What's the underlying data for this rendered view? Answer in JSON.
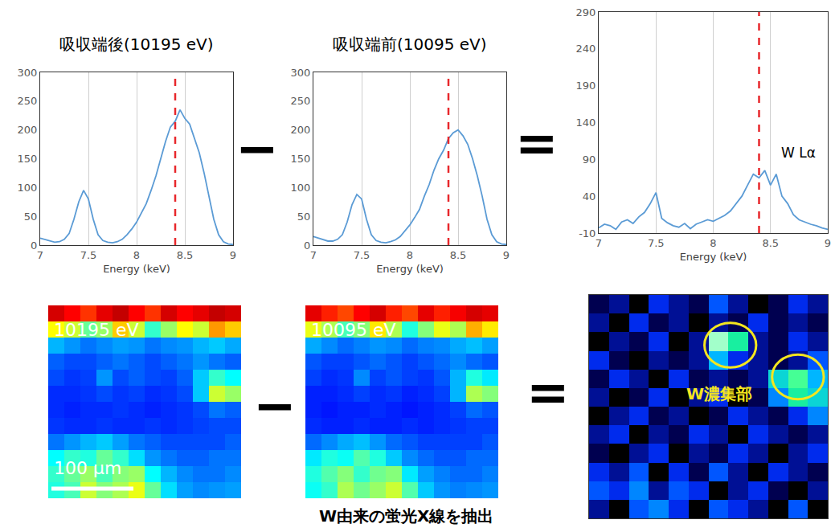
{
  "chart_data": [
    {
      "type": "line",
      "title": "吸収端後(10195 eV)",
      "x_label": "Energy (keV)",
      "color": "#5b9bd5",
      "x": [
        7,
        7.05,
        7.1,
        7.15,
        7.2,
        7.25,
        7.3,
        7.35,
        7.4,
        7.45,
        7.5,
        7.55,
        7.6,
        7.65,
        7.7,
        7.75,
        7.8,
        7.85,
        7.9,
        7.95,
        8,
        8.05,
        8.1,
        8.15,
        8.2,
        8.25,
        8.3,
        8.35,
        8.4,
        8.45,
        8.5,
        8.55,
        8.6,
        8.65,
        8.7,
        8.75,
        8.8,
        8.85,
        8.9,
        8.95,
        9
      ],
      "values": [
        12,
        10,
        8,
        5,
        6,
        10,
        20,
        45,
        75,
        95,
        80,
        45,
        18,
        8,
        5,
        4,
        6,
        10,
        18,
        28,
        40,
        55,
        72,
        95,
        120,
        150,
        180,
        205,
        215,
        235,
        220,
        210,
        185,
        160,
        125,
        85,
        45,
        18,
        6,
        2,
        1
      ],
      "xlim": [
        7,
        9
      ],
      "xticks": [
        7,
        7.5,
        8,
        8.5,
        9
      ],
      "ylim": [
        0,
        300
      ],
      "yticks": [
        0,
        50,
        100,
        150,
        200,
        250,
        300
      ],
      "grid": "x",
      "reference_line": {
        "x": 8.4,
        "color": "#e8282c",
        "line_style": "dash"
      }
    },
    {
      "type": "line",
      "title": "吸収端前(10095 eV)",
      "x_label": "Energy (keV)",
      "color": "#5b9bd5",
      "x": [
        7,
        7.05,
        7.1,
        7.15,
        7.2,
        7.25,
        7.3,
        7.35,
        7.4,
        7.45,
        7.5,
        7.55,
        7.6,
        7.65,
        7.7,
        7.75,
        7.8,
        7.85,
        7.9,
        7.95,
        8,
        8.05,
        8.1,
        8.15,
        8.2,
        8.25,
        8.3,
        8.35,
        8.4,
        8.45,
        8.5,
        8.55,
        8.6,
        8.65,
        8.7,
        8.75,
        8.8,
        8.85,
        8.9,
        8.95,
        9
      ],
      "values": [
        15,
        12,
        10,
        7,
        7,
        10,
        18,
        40,
        70,
        88,
        80,
        45,
        18,
        8,
        5,
        4,
        6,
        9,
        15,
        25,
        35,
        48,
        62,
        85,
        105,
        130,
        150,
        165,
        185,
        195,
        200,
        190,
        175,
        150,
        120,
        85,
        45,
        18,
        6,
        2,
        1
      ],
      "xlim": [
        7,
        9
      ],
      "xticks": [
        7,
        7.5,
        8,
        8.5,
        9
      ],
      "ylim": [
        0,
        300
      ],
      "yticks": [
        0,
        50,
        100,
        150,
        200,
        250,
        300
      ],
      "grid": "x",
      "reference_line": {
        "x": 8.4,
        "color": "#e8282c",
        "line_style": "dash"
      }
    },
    {
      "type": "line",
      "x_label": "Energy (keV)",
      "color": "#5b9bd5",
      "x": [
        7,
        7.05,
        7.1,
        7.15,
        7.2,
        7.25,
        7.3,
        7.35,
        7.4,
        7.45,
        7.5,
        7.55,
        7.6,
        7.65,
        7.7,
        7.75,
        7.8,
        7.85,
        7.9,
        7.95,
        8,
        8.05,
        8.1,
        8.15,
        8.2,
        8.25,
        8.3,
        8.35,
        8.4,
        8.45,
        8.5,
        8.55,
        8.6,
        8.65,
        8.7,
        8.75,
        8.8,
        8.85,
        8.9,
        8.95,
        9
      ],
      "values": [
        -3,
        2,
        0,
        -5,
        5,
        8,
        3,
        12,
        18,
        30,
        45,
        10,
        4,
        0,
        -2,
        3,
        -4,
        2,
        5,
        8,
        6,
        10,
        14,
        20,
        30,
        40,
        55,
        70,
        65,
        75,
        55,
        70,
        40,
        30,
        15,
        8,
        5,
        2,
        0,
        -3,
        -5
      ],
      "xlim": [
        7,
        9
      ],
      "xticks": [
        7,
        7.5,
        8,
        8.5,
        9
      ],
      "ylim": [
        -10,
        290
      ],
      "yticks": [
        -10,
        40,
        90,
        140,
        190,
        240,
        290
      ],
      "grid": "x",
      "reference_line": {
        "x": 8.4,
        "color": "#e8282c",
        "line_style": "dash"
      },
      "annotations": [
        {
          "text": "W Lα",
          "x": 8.58,
          "y": 99
        }
      ]
    },
    {
      "type": "heatmap",
      "label": "10195 eV",
      "tick_labels": false,
      "zlim": [
        0,
        100
      ],
      "scale_bar": {
        "label": "100 µm",
        "length": 5.1
      },
      "cells": [
        [
          90,
          85,
          80,
          88,
          92,
          85,
          80,
          90,
          85,
          88,
          92,
          90
        ],
        [
          60,
          55,
          45,
          50,
          65,
          55,
          40,
          50,
          60,
          55,
          70,
          65
        ],
        [
          28,
          25,
          22,
          24,
          26,
          25,
          22,
          24,
          25,
          28,
          30,
          27
        ],
        [
          20,
          18,
          18,
          20,
          22,
          20,
          18,
          20,
          22,
          25,
          22,
          20
        ],
        [
          18,
          16,
          17,
          25,
          18,
          20,
          18,
          17,
          20,
          30,
          40,
          35
        ],
        [
          15,
          15,
          16,
          18,
          16,
          17,
          15,
          16,
          18,
          30,
          55,
          50
        ],
        [
          15,
          14,
          15,
          15,
          16,
          15,
          14,
          15,
          16,
          18,
          22,
          20
        ],
        [
          16,
          15,
          15,
          16,
          15,
          15,
          16,
          15,
          16,
          17,
          18,
          18
        ],
        [
          22,
          25,
          28,
          30,
          26,
          22,
          20,
          18,
          18,
          18,
          18,
          20
        ],
        [
          35,
          40,
          38,
          45,
          40,
          32,
          25,
          22,
          20,
          20,
          22,
          22
        ],
        [
          40,
          45,
          50,
          42,
          48,
          50,
          35,
          28,
          24,
          22,
          22,
          24
        ],
        [
          38,
          42,
          55,
          48,
          52,
          58,
          45,
          32,
          26,
          24,
          25,
          26
        ]
      ]
    },
    {
      "type": "heatmap",
      "label": "10095 eV",
      "tick_labels": false,
      "zlim": [
        0,
        100
      ],
      "cells": [
        [
          88,
          82,
          78,
          85,
          90,
          82,
          78,
          88,
          82,
          86,
          90,
          88
        ],
        [
          58,
          52,
          42,
          48,
          62,
          52,
          38,
          48,
          58,
          52,
          68,
          62
        ],
        [
          27,
          24,
          21,
          23,
          25,
          24,
          21,
          23,
          24,
          27,
          29,
          26
        ],
        [
          19,
          17,
          17,
          19,
          21,
          19,
          17,
          19,
          21,
          24,
          21,
          19
        ],
        [
          17,
          15,
          16,
          24,
          17,
          19,
          17,
          16,
          19,
          28,
          38,
          33
        ],
        [
          14,
          14,
          15,
          17,
          15,
          16,
          14,
          15,
          17,
          28,
          52,
          48
        ],
        [
          14,
          13,
          14,
          14,
          15,
          14,
          13,
          14,
          15,
          17,
          21,
          19
        ],
        [
          15,
          14,
          14,
          15,
          14,
          14,
          15,
          14,
          15,
          16,
          17,
          17
        ],
        [
          21,
          24,
          27,
          29,
          25,
          21,
          19,
          17,
          17,
          17,
          17,
          19
        ],
        [
          33,
          38,
          36,
          43,
          38,
          30,
          24,
          21,
          19,
          19,
          21,
          21
        ],
        [
          38,
          43,
          48,
          40,
          46,
          48,
          33,
          26,
          23,
          21,
          21,
          23
        ],
        [
          36,
          40,
          52,
          46,
          50,
          55,
          43,
          30,
          25,
          23,
          24,
          25
        ]
      ]
    },
    {
      "type": "heatmap",
      "label": "W濃集部",
      "tick_labels": false,
      "zlim": [
        0,
        12
      ],
      "color": "#f5e61e",
      "highlights": [
        {
          "col": 6.6,
          "row": 2.2
        },
        {
          "col": 10.0,
          "row": 3.9
        }
      ],
      "cells": [
        [
          2,
          3,
          0,
          4,
          3,
          2,
          5,
          3,
          0,
          2,
          4,
          3
        ],
        [
          3,
          0,
          4,
          2,
          3,
          0,
          3,
          2,
          4,
          2,
          3,
          2
        ],
        [
          0,
          3,
          2,
          4,
          0,
          3,
          11,
          9,
          3,
          2,
          4,
          3
        ],
        [
          4,
          2,
          0,
          3,
          2,
          3,
          7,
          4,
          3,
          2,
          3,
          5
        ],
        [
          2,
          4,
          3,
          0,
          4,
          2,
          3,
          2,
          3,
          8,
          10,
          7
        ],
        [
          3,
          0,
          2,
          4,
          0,
          3,
          4,
          0,
          2,
          6,
          9,
          8
        ],
        [
          0,
          3,
          4,
          2,
          3,
          0,
          2,
          4,
          3,
          2,
          4,
          6
        ],
        [
          3,
          4,
          0,
          3,
          2,
          4,
          3,
          0,
          4,
          3,
          2,
          3
        ],
        [
          2,
          0,
          3,
          4,
          0,
          3,
          2,
          4,
          3,
          0,
          3,
          4
        ],
        [
          4,
          3,
          5,
          0,
          4,
          2,
          5,
          3,
          0,
          4,
          3,
          2
        ],
        [
          5,
          4,
          6,
          3,
          5,
          4,
          0,
          3,
          4,
          2,
          0,
          3
        ],
        [
          3,
          0,
          5,
          6,
          4,
          0,
          5,
          4,
          3,
          0,
          5,
          0
        ]
      ]
    }
  ],
  "operators": [
    "−",
    "="
  ],
  "caption": "W由来の蛍光X線を抽出"
}
